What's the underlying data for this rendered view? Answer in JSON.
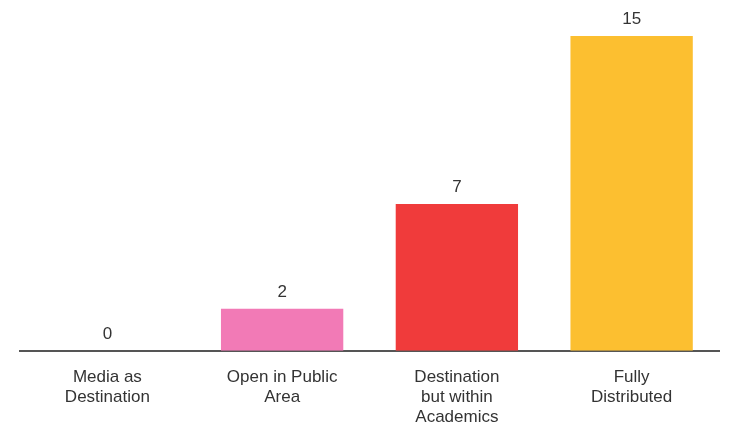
{
  "chart_data": {
    "type": "bar",
    "categories": [
      "Media as Destination",
      "Open in Public Area",
      "Destination but within Academics",
      "Fully Distributed"
    ],
    "values": [
      0,
      2,
      7,
      15
    ],
    "colors": [
      "#9e9e9e",
      "#f27ab6",
      "#f03b3b",
      "#fcbf30"
    ],
    "ylim": [
      0,
      15
    ],
    "grid": false,
    "data_labels": true,
    "tick_labels": "x"
  }
}
